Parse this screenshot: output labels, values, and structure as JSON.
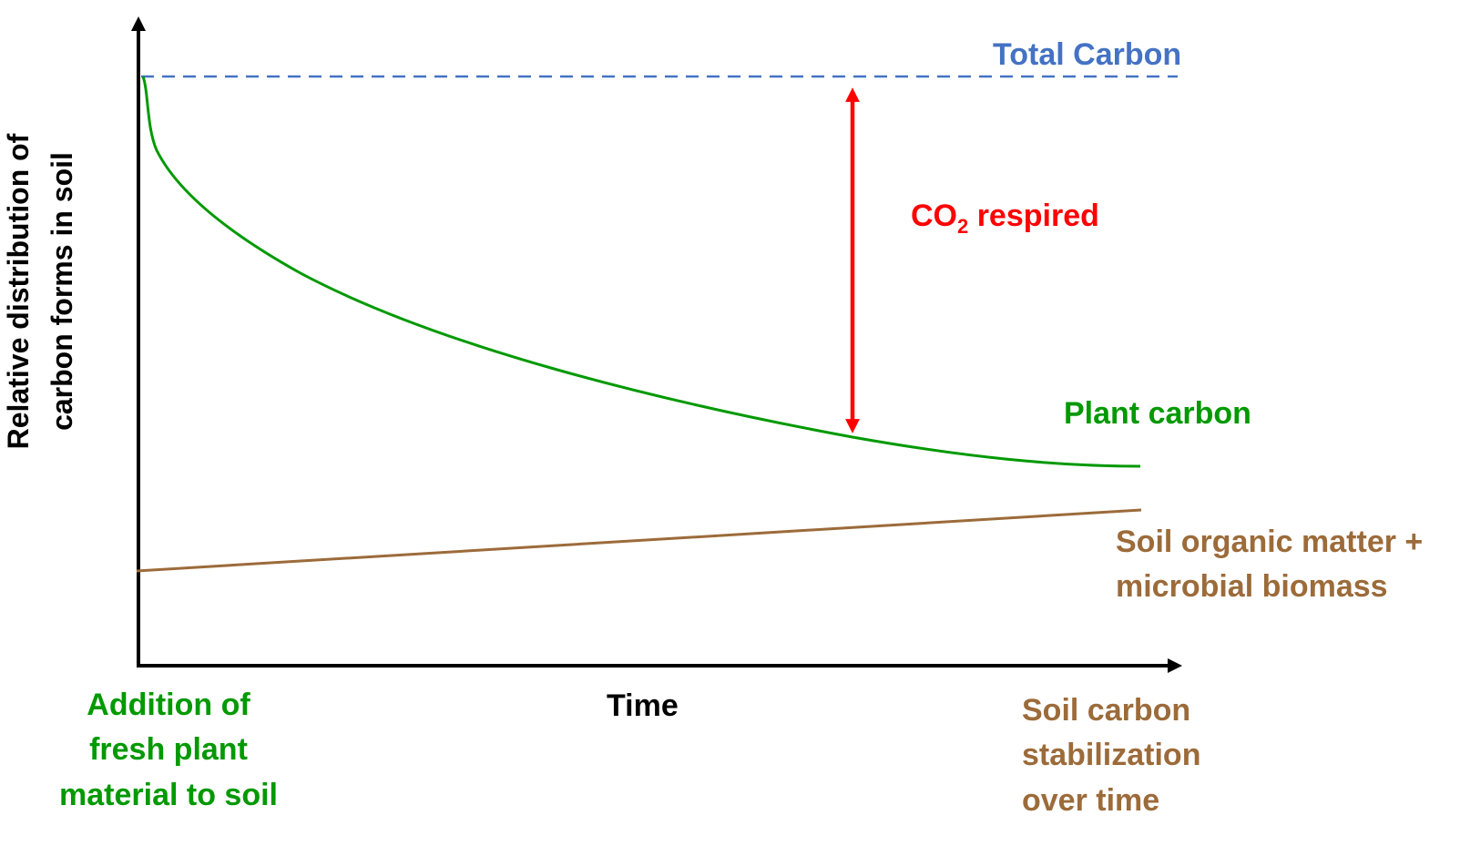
{
  "colors": {
    "axis": "#000000",
    "total_carbon": "#4472C4",
    "plant": "#009900",
    "soil": "#9C6B3A",
    "co2": "#FF0000"
  },
  "labels": {
    "y_axis": [
      "Relative distribution of",
      "carbon forms in soil"
    ],
    "x_axis": "Time",
    "total_carbon": "Total Carbon",
    "plant_carbon": "Plant carbon",
    "soil_organic": [
      "Soil organic matter +",
      "microbial biomass"
    ],
    "co2_main": "CO",
    "co2_sub": "2",
    "co2_rest": "respired",
    "start_note": [
      "Addition of",
      "fresh plant",
      "material to soil"
    ],
    "end_note": [
      "Soil carbon",
      "stabilization",
      "over time"
    ]
  }
}
